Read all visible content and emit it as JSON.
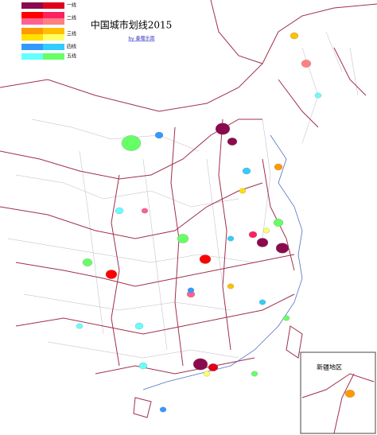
{
  "title": "中国城市划线2015",
  "byline": "by 秦蜀乐雨",
  "inset_label": "新疆地区",
  "legend": [
    {
      "label": "一线",
      "rows": [
        [
          "#8b0a4e",
          "#e0001a"
        ]
      ]
    },
    {
      "label": "二线",
      "rows": [
        [
          "#ff0000",
          "#ff2060"
        ],
        [
          "#ff6090",
          "#ff8080"
        ]
      ]
    },
    {
      "label": "三线",
      "rows": [
        [
          "#ff9900",
          "#ffc000"
        ],
        [
          "#ffe000",
          "#ffff66"
        ]
      ]
    },
    {
      "label": "四线",
      "rows": [
        [
          "#3399ff",
          "#33ccff"
        ]
      ]
    },
    {
      "label": "五线",
      "rows": [
        [
          "#66ffff",
          "#66ff66"
        ]
      ]
    }
  ]
}
